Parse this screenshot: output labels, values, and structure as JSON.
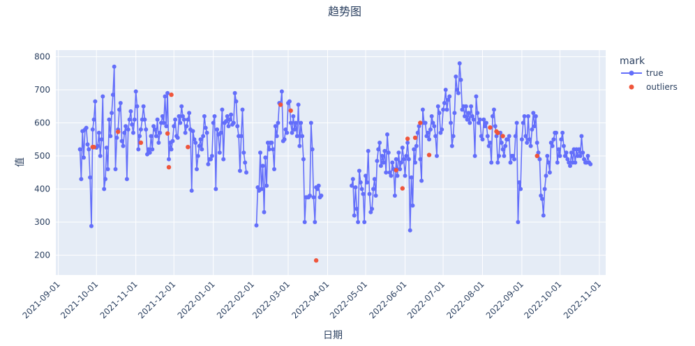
{
  "chart_data": {
    "type": "line",
    "title": "趋势图",
    "xlabel": "日期",
    "ylabel": "值",
    "ylim": [
      140,
      820
    ],
    "xlim": [
      "2021-08-30",
      "2022-11-06"
    ],
    "x_ticks": [
      "2021-09-01",
      "2021-10-01",
      "2021-11-01",
      "2021-12-01",
      "2022-01-01",
      "2022-02-01",
      "2022-03-01",
      "2022-04-01",
      "2022-05-01",
      "2022-06-01",
      "2022-07-01",
      "2022-08-01",
      "2022-09-01",
      "2022-10-01",
      "2022-11-01"
    ],
    "y_ticks": [
      200,
      300,
      400,
      500,
      600,
      700,
      800
    ],
    "grid": true,
    "legend": {
      "title": "mark",
      "position": "right"
    },
    "series": [
      {
        "name": "true",
        "color": "#636efa",
        "mode": "lines+markers",
        "segments": [
          {
            "x": [
              "2021-09-18",
              "2021-09-19",
              "2021-09-20",
              "2021-09-21",
              "2021-09-22",
              "2021-09-23",
              "2021-09-24",
              "2021-09-25",
              "2021-09-26",
              "2021-09-27",
              "2021-09-28",
              "2021-09-29",
              "2021-09-30",
              "2021-10-01",
              "2021-10-02",
              "2021-10-03",
              "2021-10-04",
              "2021-10-05",
              "2021-10-06",
              "2021-10-07",
              "2021-10-08",
              "2021-10-09",
              "2021-10-10",
              "2021-10-11",
              "2021-10-12",
              "2021-10-13",
              "2021-10-14",
              "2021-10-15",
              "2021-10-16",
              "2021-10-17",
              "2021-10-18",
              "2021-10-19",
              "2021-10-20",
              "2021-10-21",
              "2021-10-22",
              "2021-10-23",
              "2021-10-24",
              "2021-10-25",
              "2021-10-26",
              "2021-10-27",
              "2021-10-28",
              "2021-10-29",
              "2021-10-30",
              "2021-10-31",
              "2021-11-01",
              "2021-11-02",
              "2021-11-03",
              "2021-11-04",
              "2021-11-05",
              "2021-11-06",
              "2021-11-07",
              "2021-11-08",
              "2021-11-09",
              "2021-11-10",
              "2021-11-11",
              "2021-11-12",
              "2021-11-13",
              "2021-11-14",
              "2021-11-15",
              "2021-11-16",
              "2021-11-17",
              "2021-11-18",
              "2021-11-19",
              "2021-11-20",
              "2021-11-21",
              "2021-11-22",
              "2021-11-23",
              "2021-11-24",
              "2021-11-25",
              "2021-11-26",
              "2021-11-27",
              "2021-11-28",
              "2021-11-29",
              "2021-11-30",
              "2021-12-01",
              "2021-12-02",
              "2021-12-03",
              "2021-12-04",
              "2021-12-05",
              "2021-12-06",
              "2021-12-07",
              "2021-12-08",
              "2021-12-09",
              "2021-12-10",
              "2021-12-11",
              "2021-12-12",
              "2021-12-13",
              "2021-12-14",
              "2021-12-15",
              "2021-12-16",
              "2021-12-17",
              "2021-12-18",
              "2021-12-19",
              "2021-12-20",
              "2021-12-21",
              "2021-12-22",
              "2021-12-23",
              "2021-12-24",
              "2021-12-25",
              "2021-12-26",
              "2021-12-27",
              "2021-12-28",
              "2021-12-29",
              "2021-12-30",
              "2021-12-31",
              "2022-01-01",
              "2022-01-02",
              "2022-01-03",
              "2022-01-04",
              "2022-01-05",
              "2022-01-06",
              "2022-01-07",
              "2022-01-08",
              "2022-01-09",
              "2022-01-10",
              "2022-01-11",
              "2022-01-12",
              "2022-01-13",
              "2022-01-14",
              "2022-01-15",
              "2022-01-16",
              "2022-01-17",
              "2022-01-18",
              "2022-01-19",
              "2022-01-20",
              "2022-01-21",
              "2022-01-22",
              "2022-01-23",
              "2022-01-24",
              "2022-01-25",
              "2022-01-26",
              "2022-01-27"
            ],
            "y": [
              520,
              430,
              575,
              495,
              580,
              585,
              535,
              520,
              435,
              288,
              580,
              610,
              665,
              525,
              530,
              570,
              500,
              550,
              680,
              400,
              430,
              525,
              460,
              610,
              560,
              630,
              685,
              770,
              460,
              555,
              580,
              640,
              660,
              545,
              530,
              570,
              590,
              430,
              580,
              610,
              635,
              595,
              570,
              610,
              695,
              650,
              520,
              560,
              580,
              610,
              650,
              610,
              580,
              505,
              520,
              510,
              560,
              520,
              590,
              580,
              560,
              610,
              540,
              570,
              600,
              620,
              600,
              680,
              590,
              690,
              490,
              540,
              520,
              545,
              590,
              610,
              560,
              555,
              620,
              600,
              650,
              620,
              610,
              570,
              590,
              610,
              630,
              580,
              395,
              575,
              550,
              540,
              460,
              500,
              530,
              550,
              520,
              560,
              620,
              585,
              570,
              475,
              490,
              490,
              500,
              600,
              620,
              400,
              580,
              565,
              510,
              570,
              640,
              490,
              600,
              605,
              620,
              590,
              610,
              625,
              595,
              600,
              690,
              665,
              590,
              560,
              455,
              560,
              640,
              510,
              480,
              450
            ]
          },
          {
            "x": [
              "2022-02-04",
              "2022-02-05",
              "2022-02-06",
              "2022-02-07",
              "2022-02-08",
              "2022-02-09",
              "2022-02-10",
              "2022-02-11",
              "2022-02-12",
              "2022-02-13",
              "2022-02-14",
              "2022-02-15",
              "2022-02-16",
              "2022-02-17",
              "2022-02-18",
              "2022-02-19",
              "2022-02-20",
              "2022-02-21",
              "2022-02-22",
              "2022-02-23",
              "2022-02-24",
              "2022-02-25",
              "2022-02-26",
              "2022-02-27",
              "2022-02-28",
              "2022-03-01",
              "2022-03-02",
              "2022-03-03",
              "2022-03-04",
              "2022-03-05",
              "2022-03-06",
              "2022-03-07",
              "2022-03-08",
              "2022-03-09",
              "2022-03-10",
              "2022-03-11",
              "2022-03-12",
              "2022-03-13",
              "2022-03-14",
              "2022-03-15",
              "2022-03-16",
              "2022-03-17",
              "2022-03-18",
              "2022-03-19",
              "2022-03-20",
              "2022-03-21",
              "2022-03-22",
              "2022-03-23",
              "2022-03-24",
              "2022-03-25",
              "2022-03-26",
              "2022-03-27"
            ],
            "y": [
              290,
              405,
              395,
              510,
              400,
              470,
              330,
              495,
              410,
              540,
              520,
              540,
              540,
              520,
              460,
              590,
              560,
              600,
              660,
              655,
              695,
              545,
              550,
              580,
              570,
              660,
              665,
              600,
              570,
              620,
              580,
              600,
              560,
              655,
              530,
              600,
              560,
              490,
              300,
              375,
              375,
              375,
              380,
              600,
              520,
              375,
              300,
              405,
              400,
              410,
              375,
              380
            ]
          },
          {
            "x": [
              "2022-04-20",
              "2022-04-21",
              "2022-04-22",
              "2022-04-23",
              "2022-04-24",
              "2022-04-25",
              "2022-04-26",
              "2022-04-27",
              "2022-04-28",
              "2022-04-29",
              "2022-04-30",
              "2022-05-01",
              "2022-05-02",
              "2022-05-03",
              "2022-05-04",
              "2022-05-05",
              "2022-05-06",
              "2022-05-07",
              "2022-05-08",
              "2022-05-09",
              "2022-05-10",
              "2022-05-11",
              "2022-05-12",
              "2022-05-13",
              "2022-05-14",
              "2022-05-15",
              "2022-05-16",
              "2022-05-17",
              "2022-05-18",
              "2022-05-19",
              "2022-05-20",
              "2022-05-21",
              "2022-05-22",
              "2022-05-23",
              "2022-05-24",
              "2022-05-25",
              "2022-05-26",
              "2022-05-27",
              "2022-05-28",
              "2022-05-29",
              "2022-05-30",
              "2022-05-31",
              "2022-06-01",
              "2022-06-02",
              "2022-06-03",
              "2022-06-04",
              "2022-06-05",
              "2022-06-06",
              "2022-06-07",
              "2022-06-08",
              "2022-06-09",
              "2022-06-10",
              "2022-06-11",
              "2022-06-12",
              "2022-06-13",
              "2022-06-14",
              "2022-06-15",
              "2022-06-16",
              "2022-06-17",
              "2022-06-18",
              "2022-06-19",
              "2022-06-20",
              "2022-06-21",
              "2022-06-22",
              "2022-06-23",
              "2022-06-24",
              "2022-06-25",
              "2022-06-26",
              "2022-06-27",
              "2022-06-28",
              "2022-06-29",
              "2022-06-30",
              "2022-07-01",
              "2022-07-02",
              "2022-07-03",
              "2022-07-04",
              "2022-07-05",
              "2022-07-06",
              "2022-07-07",
              "2022-07-08",
              "2022-07-09",
              "2022-07-10",
              "2022-07-11",
              "2022-07-12",
              "2022-07-13",
              "2022-07-14",
              "2022-07-15",
              "2022-07-16",
              "2022-07-17",
              "2022-07-18",
              "2022-07-19",
              "2022-07-20",
              "2022-07-21",
              "2022-07-22",
              "2022-07-23",
              "2022-07-24",
              "2022-07-25",
              "2022-07-26",
              "2022-07-27",
              "2022-07-28",
              "2022-07-29",
              "2022-07-30",
              "2022-07-31",
              "2022-08-01",
              "2022-08-02",
              "2022-08-03",
              "2022-08-04",
              "2022-08-05",
              "2022-08-06",
              "2022-08-07",
              "2022-08-08",
              "2022-08-09",
              "2022-08-10",
              "2022-08-11",
              "2022-08-12",
              "2022-08-13",
              "2022-08-14",
              "2022-08-15",
              "2022-08-16",
              "2022-08-17",
              "2022-08-18",
              "2022-08-19",
              "2022-08-20",
              "2022-08-21",
              "2022-08-22",
              "2022-08-23",
              "2022-08-24",
              "2022-08-25",
              "2022-08-26",
              "2022-08-27",
              "2022-08-28",
              "2022-08-29",
              "2022-08-30",
              "2022-08-31",
              "2022-09-01",
              "2022-09-02",
              "2022-09-03",
              "2022-09-04",
              "2022-09-05",
              "2022-09-06",
              "2022-09-07",
              "2022-09-08",
              "2022-09-09",
              "2022-09-10",
              "2022-09-11",
              "2022-09-12",
              "2022-09-13",
              "2022-09-14",
              "2022-09-15",
              "2022-09-16",
              "2022-09-17",
              "2022-09-18",
              "2022-09-19",
              "2022-09-20",
              "2022-09-21",
              "2022-09-22",
              "2022-09-23",
              "2022-09-24",
              "2022-09-25",
              "2022-09-26",
              "2022-09-27",
              "2022-09-28",
              "2022-09-29",
              "2022-09-30",
              "2022-10-01",
              "2022-10-02",
              "2022-10-03",
              "2022-10-04",
              "2022-10-05",
              "2022-10-06",
              "2022-10-07",
              "2022-10-08",
              "2022-10-09",
              "2022-10-10",
              "2022-10-11",
              "2022-10-12",
              "2022-10-13",
              "2022-10-14",
              "2022-10-15",
              "2022-10-16",
              "2022-10-17",
              "2022-10-18",
              "2022-10-19",
              "2022-10-20",
              "2022-10-21",
              "2022-10-22",
              "2022-10-23",
              "2022-10-24",
              "2022-10-25"
            ],
            "y": [
              410,
              430,
              320,
              405,
              340,
              300,
              455,
              420,
              400,
              385,
              300,
              440,
              420,
              515,
              385,
              330,
              340,
              400,
              430,
              380,
              485,
              520,
              540,
              470,
              500,
              480,
              515,
              450,
              565,
              510,
              450,
              440,
              480,
              460,
              380,
              490,
              440,
              510,
              460,
              480,
              525,
              490,
              440,
              500,
              540,
              490,
              275,
              435,
              350,
              520,
              480,
              530,
              570,
              590,
              490,
              425,
              640,
              600,
              600,
              560,
              570,
              550,
              580,
              620,
              600,
              590,
              560,
              500,
              650,
              630,
              570,
              580,
              640,
              660,
              700,
              640,
              670,
              680,
              600,
              530,
              560,
              630,
              740,
              700,
              690,
              780,
              730,
              640,
              650,
              620,
              650,
              610,
              630,
              600,
              650,
              620,
              610,
              500,
              680,
              630,
              600,
              610,
              560,
              550,
              610,
              590,
              600,
              560,
              530,
              540,
              480,
              620,
              640,
              590,
              560,
              480,
              500,
              570,
              540,
              520,
              500,
              530,
              550,
              550,
              560,
              480,
              500,
              500,
              490,
              560,
              600,
              300,
              420,
              400,
              550,
              600,
              620,
              560,
              540,
              620,
              550,
              530,
              580,
              630,
              590,
              620,
              540,
              510,
              490,
              380,
              370,
              320,
              400,
              440,
              500,
              480,
              450,
              540,
              530,
              550,
              570,
              570,
              480,
              520,
              500,
              550,
              570,
              530,
              500,
              510,
              490,
              480,
              470,
              510,
              480,
              520,
              480,
              520,
              500,
              520,
              500,
              560,
              510,
              490,
              480,
              480,
              500,
              480,
              475
            ]
          }
        ]
      },
      {
        "name": "outliers",
        "color": "#ef553b",
        "mode": "markers",
        "x": [
          "2021-09-28",
          "2021-09-29",
          "2021-10-18",
          "2021-11-05",
          "2021-11-26",
          "2021-11-27",
          "2021-11-29",
          "2021-12-12",
          "2022-02-23",
          "2022-03-03",
          "2022-03-23",
          "2022-05-25",
          "2022-05-30",
          "2022-06-03",
          "2022-06-09",
          "2022-06-13",
          "2022-06-20",
          "2022-08-07",
          "2022-08-12",
          "2022-08-13",
          "2022-08-17",
          "2022-09-13"
        ],
        "y": [
          527,
          527,
          573,
          540,
          568,
          466,
          685,
          527,
          655,
          637,
          184,
          457,
          402,
          552,
          555,
          600,
          503,
          586,
          574,
          570,
          560,
          500
        ]
      }
    ]
  }
}
